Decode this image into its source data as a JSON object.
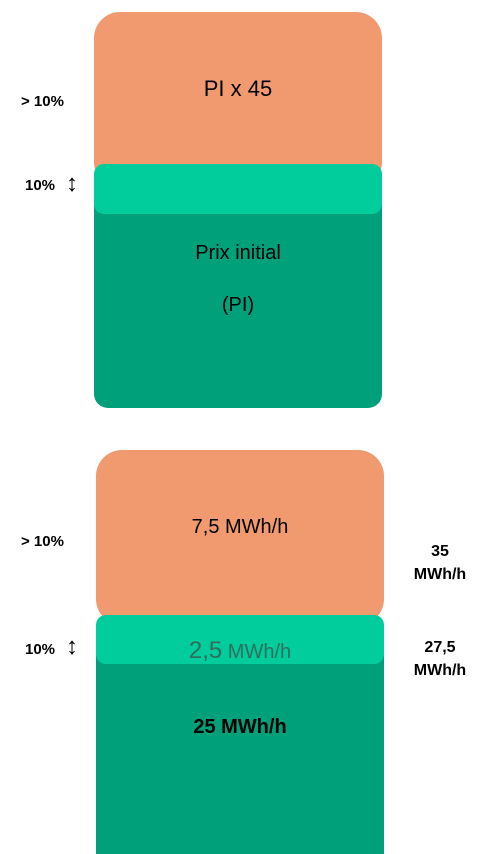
{
  "top": {
    "upper_block": "PI x 45",
    "upper_side_label": "> 10%",
    "band_side_label": "10%",
    "base_line1": "Prix initial",
    "base_line2": "(PI)"
  },
  "bottom": {
    "upper_block": "7,5 MWh/h",
    "upper_side_label": "> 10%",
    "band_side_label": "10%",
    "band_value_num": "2,5",
    "band_value_unit": " MWh/h",
    "base_value": "25 MWh/h",
    "right_label_1_line1": "35",
    "right_label_1_line2": "MWh/h",
    "right_label_2_line1": "27,5",
    "right_label_2_line2": "MWh/h"
  },
  "arrow_glyph": "↕",
  "colors": {
    "orange": "#F19A6F",
    "mint": "#00CC9C",
    "green": "#00A07A"
  }
}
